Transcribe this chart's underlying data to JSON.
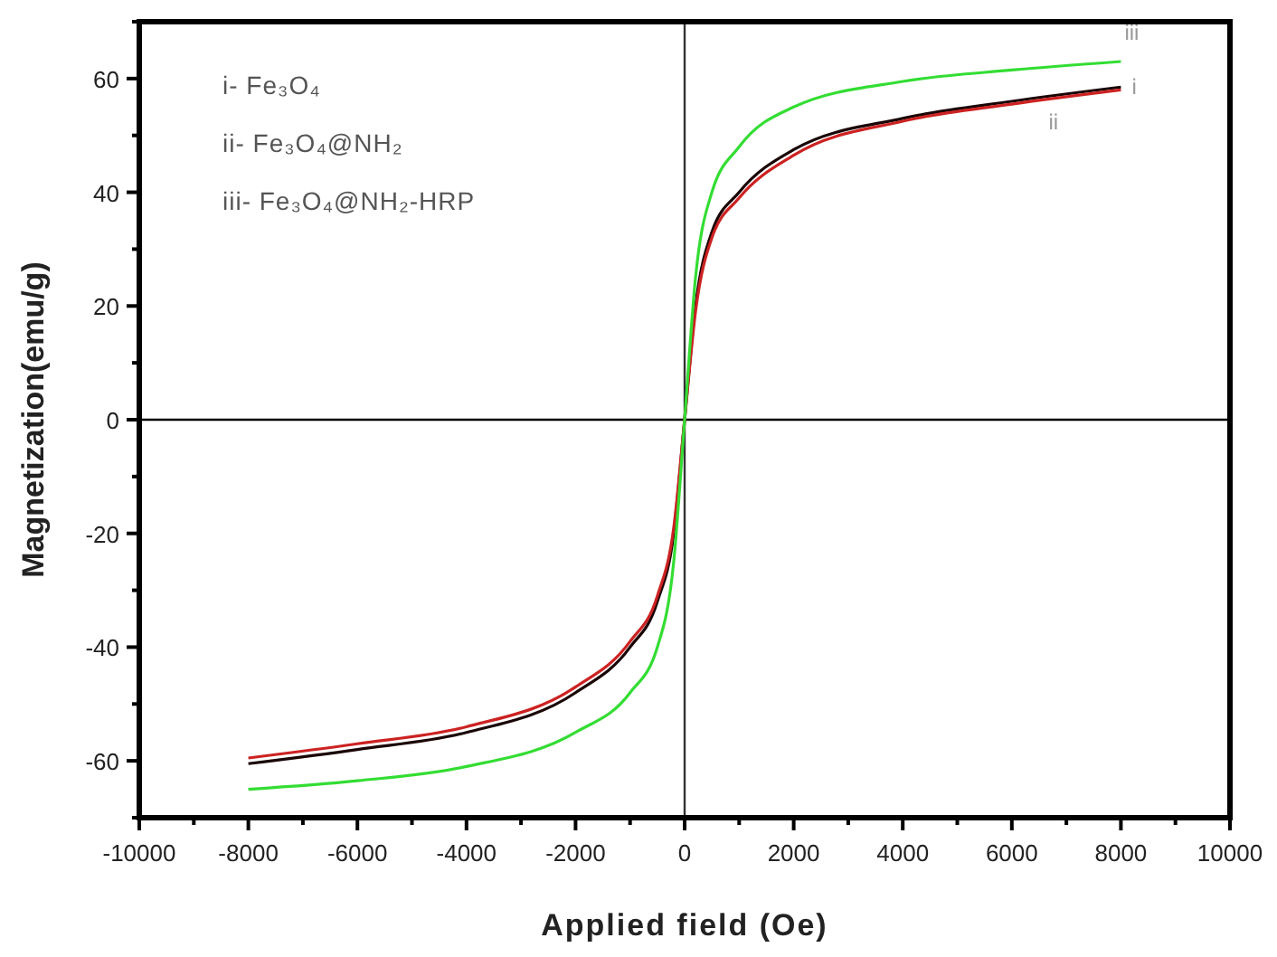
{
  "chart_data": {
    "type": "line",
    "xlabel": "Applied field (Oe)",
    "ylabel": "Magnetization(emu/g)",
    "xlim": [
      -10000,
      10000
    ],
    "ylim": [
      -70,
      70
    ],
    "xticks": [
      -10000,
      {
        "value": -9000,
        "label": null
      },
      -8000,
      {
        "value": -7000,
        "label": null
      },
      -6000,
      {
        "value": -5000,
        "label": null
      },
      -4000,
      {
        "value": -3000,
        "label": null
      },
      -2000,
      {
        "value": -1000,
        "label": null
      },
      0,
      {
        "value": 1000,
        "label": null
      },
      2000,
      {
        "value": 3000,
        "label": null
      },
      4000,
      {
        "value": 5000,
        "label": null
      },
      6000,
      {
        "value": 7000,
        "label": null
      },
      8000,
      {
        "value": 9000,
        "label": null
      },
      10000
    ],
    "yticks": [
      {
        "value": -70,
        "label": null
      },
      -60,
      {
        "value": -50,
        "label": null
      },
      -40,
      {
        "value": -30,
        "label": null
      },
      -20,
      {
        "value": -10,
        "label": null
      },
      0,
      {
        "value": 10,
        "label": null
      },
      20,
      {
        "value": 30,
        "label": null
      },
      40,
      {
        "value": 50,
        "label": null
      },
      60,
      {
        "value": 70,
        "label": null
      }
    ],
    "x": [
      -8000,
      -6000,
      -4000,
      -2000,
      -1000,
      -500,
      -200,
      0,
      200,
      500,
      1000,
      2000,
      4000,
      6000,
      8000
    ],
    "series": [
      {
        "name": "i",
        "color": "#1a0505",
        "values": [
          -60.5,
          -58,
          -55,
          -48,
          -40,
          -32,
          -20,
          0,
          20,
          33,
          40,
          47.5,
          53,
          56,
          58.5
        ]
      },
      {
        "name": "ii",
        "color": "#cc2222",
        "values": [
          -59.5,
          -57,
          -54,
          -47,
          -39,
          -31,
          -19,
          0,
          19,
          32,
          39,
          46.5,
          52.5,
          55.5,
          58
        ]
      },
      {
        "name": "iii",
        "color": "#33dd33",
        "values": [
          -65,
          -63.5,
          -61,
          -55,
          -48,
          -40,
          -25,
          0,
          25,
          40,
          48,
          55,
          59.5,
          61.5,
          63
        ]
      }
    ],
    "ref_lines": [
      {
        "axis": "x",
        "value": 0,
        "label": null,
        "color": "#333333"
      },
      {
        "axis": "y",
        "value": 0,
        "label": null,
        "color": "#000000"
      }
    ],
    "annotations": [
      "i- Fe₃O₄",
      "ii- Fe₃O₄@NH₂",
      "iii- Fe₃O₄@NH₂-HRP"
    ],
    "grid": false,
    "legend": false,
    "marker": "none",
    "line_style": "solid"
  }
}
